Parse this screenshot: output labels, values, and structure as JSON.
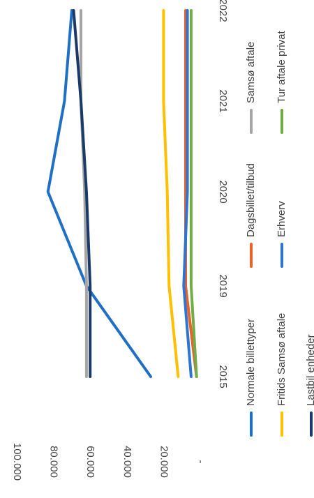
{
  "chart_data": {
    "type": "line",
    "orientation": "rotated-90-clockwise",
    "title": "",
    "xlabel": "",
    "ylabel": "",
    "x": [
      "2015",
      "2019",
      "2020",
      "2021",
      "2022"
    ],
    "ylim": [
      0,
      100000
    ],
    "y_ticks": [
      "100.000",
      "80.000",
      "60.000",
      "40.000",
      "20.000",
      "-"
    ],
    "grid": false,
    "legend_position": "bottom",
    "series": [
      {
        "name": "Normale billettyper",
        "color": "#1F6FC5",
        "values": [
          27000,
          62000,
          83000,
          74000,
          70000
        ]
      },
      {
        "name": "Dagsbillet/tilbud",
        "color": "#E8622A",
        "values": [
          2000,
          8000,
          8000,
          8000,
          8000
        ]
      },
      {
        "name": "Samsø aftale",
        "color": "#A5A5A5",
        "values": [
          62000,
          62000,
          63000,
          65000,
          65000
        ]
      },
      {
        "name": "Fritids Samsø aftale",
        "color": "#FFC000",
        "values": [
          12000,
          17000,
          18000,
          20000,
          20000
        ]
      },
      {
        "name": "Erhverv",
        "color": "#2E75D2",
        "values": [
          5000,
          9000,
          7000,
          7000,
          7000
        ]
      },
      {
        "name": "Tur aftale privat",
        "color": "#70AD47",
        "values": [
          2000,
          5000,
          5000,
          5000,
          5000
        ]
      },
      {
        "name": "Lastbil enheder",
        "color": "#1B3A6B",
        "values": [
          60000,
          60000,
          62000,
          65000,
          69000
        ]
      }
    ]
  }
}
